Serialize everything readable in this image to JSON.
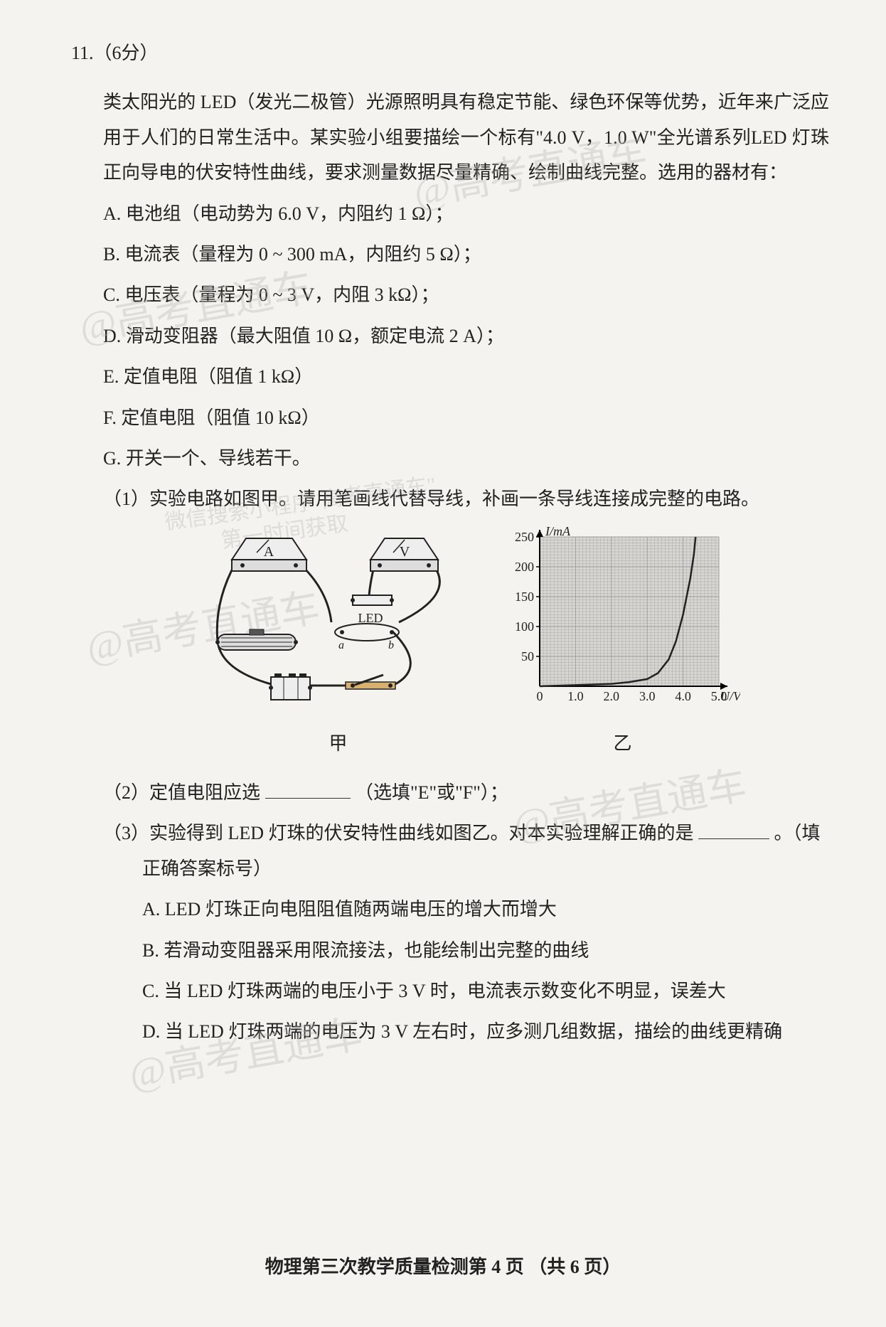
{
  "question_number": "11.（6分）",
  "intro": "类太阳光的 LED（发光二极管）光源照明具有稳定节能、绿色环保等优势，近年来广泛应用于人们的日常生活中。某实验小组要描绘一个标有\"4.0 V，1.0 W\"全光谱系列LED 灯珠正向导电的伏安特性曲线，要求测量数据尽量精确、绘制曲线完整。选用的器材有：",
  "options": {
    "A": "A. 电池组（电动势为 6.0 V，内阻约 1 Ω）；",
    "B": "B. 电流表（量程为 0 ~ 300 mA，内阻约 5 Ω）；",
    "C": "C. 电压表（量程为 0 ~ 3 V，内阻 3 kΩ）；",
    "D": "D. 滑动变阻器（最大阻值 10 Ω，额定电流 2 A）；",
    "E": "E. 定值电阻（阻值 1 kΩ）",
    "F": "F. 定值电阻（阻值 10 kΩ）",
    "G": "G. 开关一个、导线若干。"
  },
  "sub_questions": {
    "q1": "（1）实验电路如图甲。请用笔画线代替导线，补画一条导线连接成完整的电路。",
    "q2_prefix": "（2）定值电阻应选",
    "q2_suffix": "（选填\"E\"或\"F\"）；",
    "q3_prefix": "（3）实验得到 LED 灯珠的伏安特性曲线如图乙。对本实验理解正确的是",
    "q3_suffix": "。（填正确答案标号）",
    "q3_options": {
      "A": "A. LED 灯珠正向电阻阻值随两端电压的增大而增大",
      "B": "B. 若滑动变阻器采用限流接法，也能绘制出完整的曲线",
      "C": "C. 当 LED 灯珠两端的电压小于 3 V 时，电流表示数变化不明显，误差大",
      "D": "D. 当 LED 灯珠两端的电压为 3 V 左右时，应多测几组数据，描绘的曲线更精确"
    }
  },
  "figure_labels": {
    "left": "甲",
    "right": "乙"
  },
  "chart": {
    "type": "line",
    "y_label": "I/mA",
    "x_label": "U/V",
    "x_ticks": [
      "0",
      "1.0",
      "2.0",
      "3.0",
      "4.0",
      "5.0"
    ],
    "y_ticks": [
      "50",
      "100",
      "150",
      "200",
      "250"
    ],
    "xlim": [
      0,
      5.0
    ],
    "ylim": [
      0,
      250
    ],
    "curve_points": [
      [
        0,
        0
      ],
      [
        1,
        2
      ],
      [
        2,
        4
      ],
      [
        2.5,
        7
      ],
      [
        3.0,
        12
      ],
      [
        3.3,
        22
      ],
      [
        3.6,
        45
      ],
      [
        3.8,
        75
      ],
      [
        4.0,
        120
      ],
      [
        4.2,
        180
      ],
      [
        4.3,
        220
      ],
      [
        4.35,
        250
      ]
    ],
    "curve_color": "#222222",
    "grid_color": "#999999",
    "bg_color": "#d8d6d2",
    "axis_color": "#000000",
    "font_size": 18
  },
  "circuit": {
    "led_label": "LED",
    "terminal_a": "a",
    "terminal_b": "b",
    "ammeter_label": "A",
    "voltmeter_label": "V"
  },
  "watermarks": {
    "w1": "@高考直通车",
    "w2": "@高考直通车",
    "w3": "@高考直通车",
    "w4": "@高考直通车",
    "w5": "@高考直通车",
    "w6": "微信搜索小程序\"高考直通车\"",
    "w7": "第一时间获取"
  },
  "footer": "物理第三次教学质量检测第 4 页 （共 6 页）"
}
